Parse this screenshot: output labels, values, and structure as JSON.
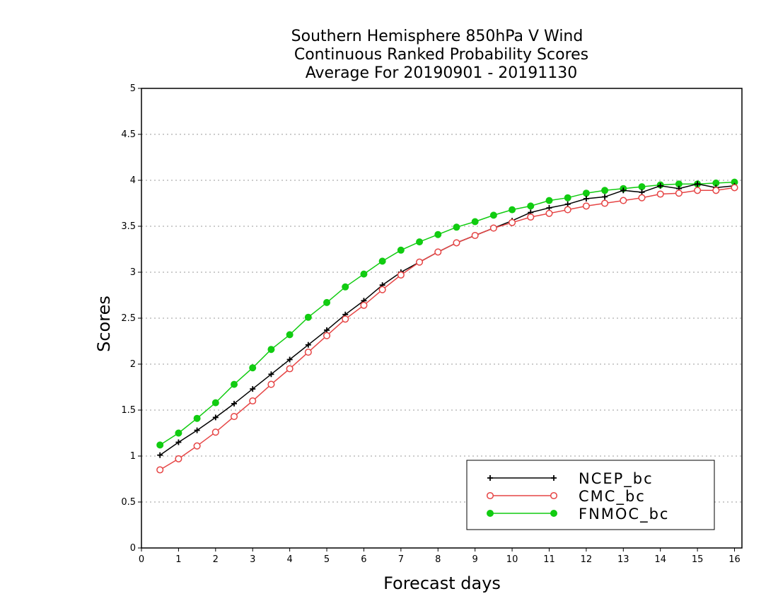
{
  "chart_data": {
    "type": "line",
    "title": [
      "Southern Hemisphere 850hPa V Wind",
      "Continuous Ranked Probability Scores",
      "Average For 20190901 - 20191130"
    ],
    "xlabel": "Forecast days",
    "ylabel": "Scores",
    "xlim": [
      0,
      16.2
    ],
    "ylim": [
      0,
      5
    ],
    "xticks": [
      0,
      1,
      2,
      3,
      4,
      5,
      6,
      7,
      8,
      9,
      10,
      11,
      12,
      13,
      14,
      15,
      16
    ],
    "yticks": [
      0,
      0.5,
      1,
      1.5,
      2,
      2.5,
      3,
      3.5,
      4,
      4.5,
      5
    ],
    "ytick_labels": [
      "0",
      "0.5",
      "1",
      "1.5",
      "2",
      "2.5",
      "3",
      "3.5",
      "4",
      "4.5",
      "5"
    ],
    "grid": "horizontal dotted",
    "legend_position": "bottom-right",
    "x": [
      0.5,
      1,
      1.5,
      2,
      2.5,
      3,
      3.5,
      4,
      4.5,
      5,
      5.5,
      6,
      6.5,
      7,
      7.5,
      8,
      8.5,
      9,
      9.5,
      10,
      10.5,
      11,
      11.5,
      12,
      12.5,
      13,
      13.5,
      14,
      14.5,
      15,
      15.5,
      16
    ],
    "series": [
      {
        "name": "NCEP_bc",
        "color": "#000000",
        "marker": "plus",
        "values": [
          1.01,
          1.15,
          1.28,
          1.42,
          1.57,
          1.73,
          1.89,
          2.05,
          2.21,
          2.37,
          2.54,
          2.69,
          2.86,
          3.0,
          3.11,
          3.22,
          3.32,
          3.4,
          3.48,
          3.56,
          3.65,
          3.7,
          3.74,
          3.8,
          3.82,
          3.89,
          3.87,
          3.94,
          3.91,
          3.96,
          3.92,
          3.94
        ]
      },
      {
        "name": "CMC_bc",
        "color": "#e64545",
        "marker": "open-circle",
        "values": [
          0.85,
          0.97,
          1.11,
          1.26,
          1.43,
          1.6,
          1.78,
          1.95,
          2.13,
          2.31,
          2.49,
          2.64,
          2.81,
          2.97,
          3.11,
          3.22,
          3.32,
          3.4,
          3.48,
          3.54,
          3.6,
          3.64,
          3.68,
          3.72,
          3.75,
          3.78,
          3.81,
          3.85,
          3.86,
          3.89,
          3.89,
          3.92
        ]
      },
      {
        "name": "FNMOC_bc",
        "color": "#11cc11",
        "marker": "filled-circle",
        "values": [
          1.12,
          1.25,
          1.41,
          1.58,
          1.78,
          1.96,
          2.16,
          2.32,
          2.51,
          2.67,
          2.84,
          2.98,
          3.12,
          3.24,
          3.33,
          3.41,
          3.49,
          3.55,
          3.62,
          3.68,
          3.72,
          3.78,
          3.81,
          3.86,
          3.89,
          3.91,
          3.93,
          3.95,
          3.96,
          3.96,
          3.97,
          3.98
        ]
      }
    ]
  }
}
